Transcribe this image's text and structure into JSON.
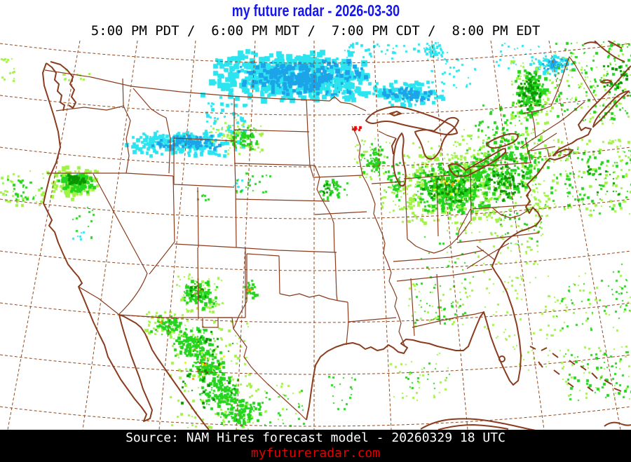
{
  "header": {
    "title": "my future radar - 2026-03-30",
    "times": "5:00 PM PDT /  6:00 PM MDT /  7:00 PM CDT /  8:00 PM EDT"
  },
  "footer": {
    "source": "Source: NAM Hires forecast model - 20260329 18 UTC",
    "website": "myfutureradar.com"
  },
  "colors": {
    "background": "#ffffff",
    "title": "#1515f0",
    "times": "#000000",
    "map_border": "#8a3c1e",
    "graticule": "#92491f",
    "footer_bg": "#000000",
    "source_text": "#ffffff",
    "website_text": "#e40000"
  },
  "palette": {
    "lightGreen": "#a0f244",
    "green": "#24d41e",
    "darkGreen": "#0a9400",
    "yellow": "#f2f200",
    "orange": "#ff9a00",
    "red": "#f00000",
    "cyan": "#2be4ef",
    "blue": "#1ca3e8"
  },
  "radar_echoes": {
    "fields": [
      "color",
      "x",
      "y",
      "w",
      "h",
      "count",
      "size_min",
      "size_max",
      "mode"
    ],
    "seed": 20260330,
    "cells": [
      [
        "cyan",
        283,
        68,
        255,
        75,
        520,
        4,
        9,
        "blob"
      ],
      [
        "blue",
        330,
        82,
        195,
        52,
        230,
        3,
        7,
        "blob"
      ],
      [
        "cyan",
        515,
        112,
        120,
        38,
        130,
        3,
        6,
        "blob"
      ],
      [
        "blue",
        540,
        122,
        85,
        22,
        60,
        3,
        5,
        "blob"
      ],
      [
        "cyan",
        455,
        108,
        60,
        30,
        60,
        3,
        5,
        "blob"
      ],
      [
        "cyan",
        290,
        145,
        60,
        45,
        50,
        2,
        5,
        "scatter"
      ],
      [
        "cyan",
        168,
        182,
        180,
        40,
        240,
        3,
        6,
        "blob"
      ],
      [
        "blue",
        205,
        190,
        115,
        24,
        80,
        3,
        5,
        "blob"
      ],
      [
        "cyan",
        490,
        60,
        130,
        22,
        45,
        2,
        4,
        "scatter"
      ],
      [
        "cyan",
        598,
        58,
        40,
        28,
        45,
        2,
        4,
        "blob"
      ],
      [
        "cyan",
        608,
        80,
        70,
        45,
        30,
        2,
        3,
        "scatter"
      ],
      [
        "cyan",
        752,
        76,
        68,
        32,
        80,
        2,
        5,
        "blob"
      ],
      [
        "blue",
        765,
        82,
        45,
        18,
        35,
        2,
        4,
        "blob"
      ],
      [
        "cyan",
        700,
        60,
        80,
        40,
        25,
        2,
        3,
        "scatter"
      ],
      [
        "cyan",
        106,
        248,
        14,
        10,
        5,
        2,
        3,
        "scatter"
      ],
      [
        "cyan",
        102,
        328,
        18,
        12,
        6,
        2,
        3,
        "scatter"
      ],
      [
        "cyan",
        330,
        255,
        25,
        18,
        8,
        2,
        3,
        "scatter"
      ],
      [
        "lightGreen",
        68,
        234,
        74,
        48,
        120,
        3,
        6,
        "blob"
      ],
      [
        "green",
        80,
        242,
        54,
        32,
        100,
        3,
        6,
        "blob"
      ],
      [
        "darkGreen",
        93,
        247,
        30,
        17,
        28,
        3,
        5,
        "blob"
      ],
      [
        "lightGreen",
        0,
        240,
        68,
        52,
        45,
        2,
        4,
        "scatter"
      ],
      [
        "green",
        8,
        252,
        50,
        34,
        25,
        2,
        4,
        "scatter"
      ],
      [
        "lightGreen",
        0,
        82,
        30,
        34,
        14,
        2,
        3,
        "scatter"
      ],
      [
        "lightGreen",
        88,
        98,
        55,
        16,
        12,
        2,
        3,
        "scatter"
      ],
      [
        "green",
        100,
        295,
        35,
        45,
        14,
        2,
        3,
        "scatter"
      ],
      [
        "green",
        278,
        268,
        24,
        20,
        8,
        2,
        3,
        "scatter"
      ],
      [
        "lightGreen",
        300,
        165,
        55,
        42,
        22,
        2,
        3,
        "scatter"
      ],
      [
        "lightGreen",
        316,
        176,
        58,
        44,
        45,
        2,
        4,
        "scatter"
      ],
      [
        "green",
        322,
        180,
        48,
        34,
        60,
        2,
        4,
        "blob"
      ],
      [
        "lightGreen",
        250,
        390,
        66,
        54,
        70,
        2,
        4,
        "scatter"
      ],
      [
        "green",
        256,
        396,
        54,
        46,
        90,
        2,
        5,
        "blob"
      ],
      [
        "darkGreen",
        266,
        404,
        32,
        26,
        16,
        2,
        4,
        "scatter"
      ],
      [
        "orange",
        276,
        410,
        12,
        9,
        3,
        2,
        3,
        "scatter"
      ],
      [
        "green",
        346,
        398,
        22,
        34,
        28,
        2,
        4,
        "blob"
      ],
      [
        "orange",
        352,
        408,
        6,
        6,
        2,
        2,
        3,
        "scatter"
      ],
      [
        "lightGreen",
        206,
        442,
        60,
        38,
        45,
        2,
        4,
        "scatter"
      ],
      [
        "green",
        213,
        447,
        50,
        30,
        60,
        2,
        5,
        "blob"
      ],
      [
        "orange",
        226,
        454,
        9,
        7,
        2,
        2,
        3,
        "scatter"
      ],
      [
        "lightGreen",
        240,
        455,
        120,
        160,
        150,
        2,
        4,
        "scatter"
      ],
      [
        "green",
        243,
        460,
        62,
        52,
        110,
        2,
        5,
        "blob"
      ],
      [
        "green",
        262,
        494,
        62,
        56,
        120,
        2,
        5,
        "blob"
      ],
      [
        "green",
        282,
        532,
        66,
        56,
        120,
        2,
        5,
        "blob"
      ],
      [
        "green",
        306,
        566,
        72,
        44,
        100,
        2,
        5,
        "blob"
      ],
      [
        "darkGreen",
        258,
        470,
        80,
        110,
        40,
        2,
        4,
        "scatter"
      ],
      [
        "yellow",
        262,
        478,
        60,
        80,
        8,
        2,
        3,
        "scatter"
      ],
      [
        "orange",
        272,
        492,
        40,
        60,
        6,
        2,
        3,
        "scatter"
      ],
      [
        "red",
        283,
        512,
        10,
        8,
        2,
        2,
        2,
        "scatter"
      ],
      [
        "lightGreen",
        352,
        538,
        76,
        62,
        28,
        2,
        3,
        "scatter"
      ],
      [
        "green",
        372,
        556,
        60,
        50,
        20,
        2,
        3,
        "scatter"
      ],
      [
        "green",
        462,
        536,
        44,
        48,
        18,
        2,
        3,
        "scatter"
      ],
      [
        "lightGreen",
        556,
        502,
        90,
        68,
        32,
        2,
        3,
        "scatter"
      ],
      [
        "green",
        572,
        512,
        70,
        52,
        18,
        2,
        3,
        "scatter"
      ],
      [
        "lightGreen",
        572,
        218,
        140,
        100,
        280,
        2,
        5,
        "scatter"
      ],
      [
        "green",
        584,
        226,
        120,
        80,
        380,
        2,
        5,
        "blob"
      ],
      [
        "darkGreen",
        600,
        238,
        85,
        55,
        85,
        2,
        4,
        "blob"
      ],
      [
        "yellow",
        614,
        248,
        55,
        38,
        12,
        2,
        3,
        "scatter"
      ],
      [
        "orange",
        626,
        256,
        22,
        14,
        3,
        2,
        3,
        "scatter"
      ],
      [
        "lightGreen",
        648,
        182,
        135,
        115,
        200,
        2,
        4,
        "scatter"
      ],
      [
        "green",
        658,
        192,
        115,
        95,
        240,
        2,
        5,
        "blob"
      ],
      [
        "darkGreen",
        688,
        228,
        64,
        62,
        55,
        2,
        4,
        "blob"
      ],
      [
        "green",
        676,
        148,
        76,
        62,
        60,
        2,
        4,
        "scatter"
      ],
      [
        "lightGreen",
        722,
        85,
        66,
        95,
        90,
        2,
        4,
        "scatter"
      ],
      [
        "green",
        730,
        92,
        50,
        80,
        150,
        2,
        5,
        "blob"
      ],
      [
        "darkGreen",
        738,
        98,
        32,
        60,
        60,
        2,
        4,
        "blob"
      ],
      [
        "lightGreen",
        785,
        55,
        115,
        120,
        100,
        2,
        3,
        "scatter"
      ],
      [
        "green",
        790,
        58,
        110,
        115,
        120,
        2,
        4,
        "scatter"
      ],
      [
        "darkGreen",
        856,
        92,
        44,
        44,
        28,
        2,
        4,
        "scatter"
      ],
      [
        "lightGreen",
        756,
        198,
        144,
        112,
        140,
        2,
        4,
        "scatter"
      ],
      [
        "green",
        776,
        212,
        124,
        92,
        90,
        2,
        4,
        "scatter"
      ],
      [
        "darkGreen",
        826,
        232,
        56,
        44,
        22,
        2,
        3,
        "scatter"
      ],
      [
        "lightGreen",
        698,
        288,
        84,
        72,
        55,
        2,
        3,
        "scatter"
      ],
      [
        "green",
        712,
        298,
        60,
        50,
        28,
        2,
        3,
        "scatter"
      ],
      [
        "lightGreen",
        636,
        306,
        84,
        84,
        35,
        2,
        3,
        "scatter"
      ],
      [
        "lightGreen",
        505,
        196,
        52,
        64,
        45,
        2,
        3,
        "scatter"
      ],
      [
        "green",
        512,
        202,
        40,
        52,
        70,
        2,
        4,
        "blob"
      ],
      [
        "green",
        548,
        228,
        32,
        62,
        45,
        2,
        4,
        "blob"
      ],
      [
        "lightGreen",
        585,
        198,
        64,
        54,
        35,
        2,
        3,
        "scatter"
      ],
      [
        "red",
        500,
        177,
        16,
        9,
        9,
        2,
        4,
        "blob"
      ],
      [
        "green",
        448,
        252,
        54,
        34,
        40,
        2,
        4,
        "blob"
      ],
      [
        "darkGreen",
        456,
        260,
        28,
        16,
        10,
        2,
        3,
        "scatter"
      ],
      [
        "green",
        336,
        245,
        48,
        32,
        22,
        2,
        3,
        "scatter"
      ],
      [
        "lightGreen",
        542,
        260,
        50,
        42,
        30,
        2,
        3,
        "scatter"
      ],
      [
        "green",
        600,
        330,
        80,
        70,
        20,
        2,
        3,
        "scatter"
      ],
      [
        "lightGreen",
        580,
        396,
        92,
        70,
        40,
        2,
        3,
        "scatter"
      ],
      [
        "green",
        588,
        402,
        78,
        58,
        40,
        2,
        3,
        "scatter"
      ],
      [
        "lightGreen",
        688,
        392,
        58,
        92,
        35,
        2,
        3,
        "scatter"
      ],
      [
        "lightGreen",
        764,
        386,
        136,
        94,
        55,
        2,
        3,
        "scatter"
      ],
      [
        "green",
        788,
        398,
        112,
        76,
        30,
        2,
        3,
        "scatter"
      ],
      [
        "lightGreen",
        798,
        492,
        102,
        80,
        45,
        2,
        3,
        "scatter"
      ],
      [
        "green",
        806,
        498,
        94,
        72,
        55,
        2,
        4,
        "scatter"
      ],
      [
        "lightGreen",
        726,
        468,
        76,
        64,
        25,
        2,
        3,
        "scatter"
      ],
      [
        "green",
        866,
        376,
        34,
        66,
        18,
        2,
        3,
        "scatter"
      ],
      [
        "lightGreen",
        730,
        356,
        40,
        48,
        14,
        2,
        3,
        "scatter"
      ]
    ]
  }
}
